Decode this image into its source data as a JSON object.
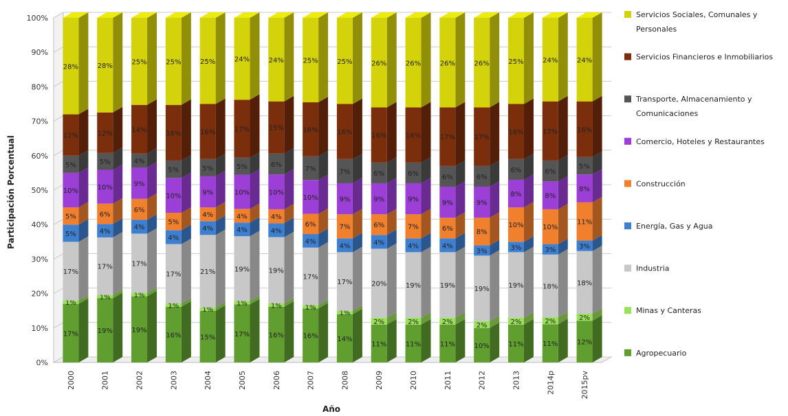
{
  "chart_data": {
    "type": "bar",
    "stacked": true,
    "percent": true,
    "xlabel": "Año",
    "ylabel": "Participación Porcentual",
    "ylim": [
      0,
      100
    ],
    "yticks": [
      "0%",
      "10%",
      "20%",
      "30%",
      "40%",
      "50%",
      "60%",
      "70%",
      "80%",
      "90%",
      "100%"
    ],
    "categories": [
      "2000",
      "2001",
      "2002",
      "2003",
      "2004",
      "2005",
      "2006",
      "2007",
      "2008",
      "2009",
      "2010",
      "2011",
      "2012",
      "2013",
      "2014p",
      "2015pv"
    ],
    "grid": true,
    "legend_position": "right",
    "series": [
      {
        "name": "Agropecuario",
        "color": "#5f9e2f",
        "labels": [
          "17%",
          "19%",
          "19%",
          "16%",
          "15%",
          "17%",
          "16%",
          "16%",
          "14%",
          "11%",
          "11%",
          "11%",
          "10%",
          "11%",
          "11%",
          "12%"
        ],
        "values": [
          17,
          19,
          19,
          16,
          15,
          17,
          16,
          16,
          14,
          11,
          11,
          11,
          10,
          11,
          11,
          12
        ]
      },
      {
        "name": "Minas y Canteras",
        "color": "#9be05a",
        "labels": [
          "1%",
          "1%",
          "1%",
          "1%",
          "1%",
          "1%",
          "1%",
          "1%",
          "1%",
          "2%",
          "2%",
          "2%",
          "2%",
          "2%",
          "2%",
          "2%"
        ],
        "values": [
          1,
          1,
          1,
          1,
          1,
          1,
          1,
          1,
          1,
          2,
          2,
          2,
          2,
          2,
          2,
          2
        ]
      },
      {
        "name": "Industria",
        "color": "#c8c8c8",
        "labels": [
          "17%",
          "17%",
          "17%",
          "17%",
          "21%",
          "19%",
          "19%",
          "17%",
          "17%",
          "20%",
          "19%",
          "19%",
          "19%",
          "19%",
          "18%",
          "18%"
        ],
        "values": [
          17,
          17,
          17,
          17,
          21,
          19,
          19,
          17,
          17,
          20,
          19,
          19,
          19,
          19,
          18,
          18
        ]
      },
      {
        "name": "Energía, Gas y Agua",
        "color": "#3f7fd0",
        "labels": [
          "5%",
          "4%",
          "4%",
          "4%",
          "4%",
          "4%",
          "4%",
          "4%",
          "4%",
          "4%",
          "4%",
          "4%",
          "3%",
          "3%",
          "3%",
          "3%"
        ],
        "values": [
          5,
          4,
          4,
          4,
          4,
          4,
          4,
          4,
          4,
          4,
          4,
          4,
          3,
          3,
          3,
          3
        ]
      },
      {
        "name": "Construcción",
        "color": "#f07f2e",
        "labels": [
          "5%",
          "6%",
          "6%",
          "5%",
          "4%",
          "4%",
          "4%",
          "6%",
          "7%",
          "6%",
          "7%",
          "6%",
          "8%",
          "10%",
          "10%",
          "11%"
        ],
        "values": [
          5,
          6,
          6,
          5,
          4,
          4,
          4,
          6,
          7,
          6,
          7,
          6,
          8,
          10,
          10,
          11
        ]
      },
      {
        "name": "Comercio, Hoteles y Restaurantes",
        "color": "#9b3fd6",
        "labels": [
          "10%",
          "10%",
          "9%",
          "10%",
          "9%",
          "10%",
          "10%",
          "10%",
          "9%",
          "9%",
          "9%",
          "9%",
          "9%",
          "8%",
          "8%",
          "8%"
        ],
        "values": [
          10,
          10,
          9,
          10,
          9,
          10,
          10,
          10,
          9,
          9,
          9,
          9,
          9,
          8,
          8,
          8
        ]
      },
      {
        "name": "Transporte, Almacenamiento y Comunicaciones",
        "color": "#555555",
        "labels": [
          "5%",
          "5%",
          "4%",
          "5%",
          "5%",
          "5%",
          "6%",
          "7%",
          "7%",
          "6%",
          "6%",
          "6%",
          "6%",
          "6%",
          "6%",
          "5%"
        ],
        "values": [
          5,
          5,
          4,
          5,
          5,
          5,
          6,
          7,
          7,
          6,
          6,
          6,
          6,
          6,
          6,
          5
        ]
      },
      {
        "name": "Servicios Financieros e Inmobiliarios",
        "color": "#7a2e0c",
        "labels": [
          "12%",
          "12%",
          "14%",
          "16%",
          "16%",
          "17%",
          "15%",
          "16%",
          "16%",
          "16%",
          "16%",
          "17%",
          "17%",
          "16%",
          "17%",
          "16%"
        ],
        "values": [
          12,
          12,
          14,
          16,
          16,
          17,
          15,
          16,
          16,
          16,
          16,
          17,
          17,
          16,
          17,
          16
        ]
      },
      {
        "name": "Servicios Sociales, Comunales y Personales",
        "color": "#d4d20a",
        "labels": [
          "28%",
          "28%",
          "25%",
          "25%",
          "25%",
          "24%",
          "24%",
          "25%",
          "25%",
          "26%",
          "26%",
          "26%",
          "26%",
          "25%",
          "24%",
          "24%"
        ],
        "values": [
          28,
          28,
          25,
          25,
          25,
          24,
          24,
          25,
          25,
          26,
          26,
          26,
          26,
          25,
          24,
          24
        ]
      }
    ],
    "legend": [
      {
        "lines": [
          "Servicios Sociales, Comunales y",
          "Personales"
        ],
        "series_index": 8
      },
      {
        "lines": [
          "Servicios Financieros e Inmobiliarios"
        ],
        "series_index": 7
      },
      {
        "lines": [
          "Transporte, Almacenamiento y",
          "Comunicaciones"
        ],
        "series_index": 6
      },
      {
        "lines": [
          "Comercio, Hoteles y Restaurantes"
        ],
        "series_index": 5
      },
      {
        "lines": [
          "Construcción"
        ],
        "series_index": 4
      },
      {
        "lines": [
          "Energía, Gas y Agua"
        ],
        "series_index": 3
      },
      {
        "lines": [
          "Industria"
        ],
        "series_index": 2
      },
      {
        "lines": [
          "Minas y Canteras"
        ],
        "series_index": 1
      },
      {
        "lines": [
          "Agropecuario"
        ],
        "series_index": 0
      }
    ]
  }
}
